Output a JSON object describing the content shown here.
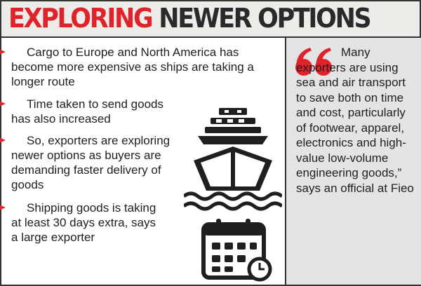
{
  "header": {
    "title_highlight": "EXPLORING",
    "title_rest": "NEWER OPTIONS"
  },
  "bullets": [
    "Cargo to Europe and North America has become more expensive as ships are taking a longer route",
    "Time taken to send goods has also increased",
    "So, exporters are exploring newer options as buyers are demanding faster delivery of goods",
    "Shipping goods is taking at least 30 days extra, says a large exporter"
  ],
  "quote": "Many exporters are using sea and air transport to save both on time and cost, particularly of footwear, apparel, electronics and high-value low-volume engineering goods,” says an official at Fieo"
}
